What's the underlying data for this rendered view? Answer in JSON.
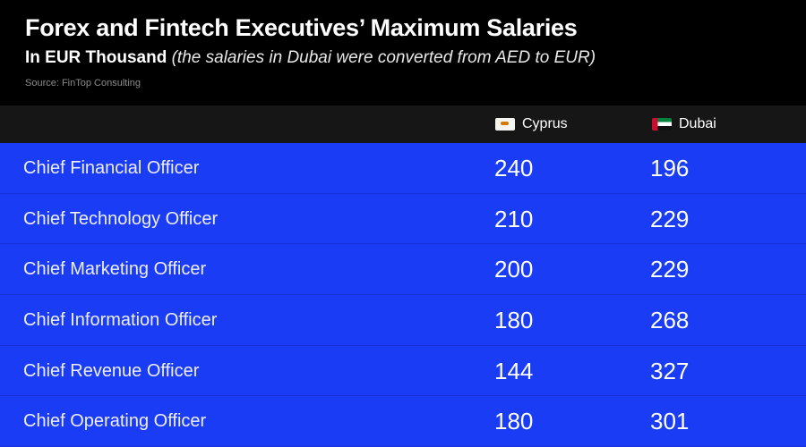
{
  "header": {
    "title": "Forex and Fintech Executives’ Maximum Salaries",
    "subtitle_bold": "In EUR Thousand",
    "subtitle_italic": "(the salaries in Dubai were converted from AED to EUR)",
    "source": "Source: FinTop Consulting"
  },
  "table": {
    "columns": [
      {
        "label": "Cyprus",
        "flag": "cyprus-flag-icon"
      },
      {
        "label": "Dubai",
        "flag": "uae-flag-icon"
      }
    ],
    "rows": [
      {
        "role": "Chief Financial Officer",
        "cyprus": "240",
        "dubai": "196"
      },
      {
        "role": "Chief Technology Officer",
        "cyprus": "210",
        "dubai": "229"
      },
      {
        "role": "Chief Marketing Officer",
        "cyprus": "200",
        "dubai": "229"
      },
      {
        "role": "Chief Information Officer",
        "cyprus": "180",
        "dubai": "268"
      },
      {
        "role": "Chief Revenue Officer",
        "cyprus": "144",
        "dubai": "327"
      },
      {
        "role": "Chief Operating Officer",
        "cyprus": "180",
        "dubai": "301"
      }
    ]
  },
  "colors": {
    "row_bg": "#1a3cf5",
    "header_bg": "#161616",
    "page_bg": "#000000"
  }
}
